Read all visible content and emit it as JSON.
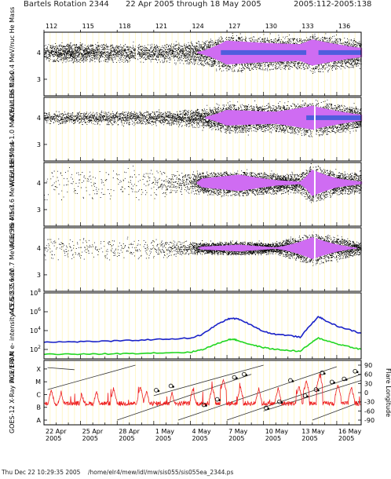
{
  "header": {
    "title": "Bartels Rotation 2344",
    "date_range": "22 Apr 2005 through 18 May 2005",
    "doy_range": "2005:112-2005:138"
  },
  "footer": {
    "timestamp": "Thu Dec 22 10:29:35 2005",
    "path": "/home/elr4/mew/idl/mw/sis055/sis055ea_2344.ps"
  },
  "colors": {
    "background": "#ffffff",
    "stripe": "#fff7c8",
    "scatter": "#000000",
    "dense_fill": "#cf6cf2",
    "dense_core": "#3a5bd9",
    "epam_high": "#1a22c8",
    "epam_low": "#22d622",
    "xray": "#ee2222",
    "flare_line": "#333333"
  },
  "chart_data": [
    {
      "type": "scatter",
      "ylabel": "ACE/ULEIS 0.2-0.4 MeV/nuc He Mass",
      "y_ticks": [
        "4",
        "3"
      ],
      "x_day_range": [
        22,
        48
      ],
      "mass_center": 4,
      "activity": [
        {
          "day": 22,
          "density": 0.25,
          "spread": 0.25
        },
        {
          "day": 24,
          "density": 0.55,
          "spread": 0.3
        },
        {
          "day": 27,
          "density": 0.35,
          "spread": 0.28
        },
        {
          "day": 30,
          "density": 0.3,
          "spread": 0.28
        },
        {
          "day": 33,
          "density": 0.35,
          "spread": 0.3
        },
        {
          "day": 35,
          "density": 0.6,
          "spread": 0.38
        },
        {
          "day": 37,
          "density": 1.0,
          "spread": 0.55
        },
        {
          "day": 40,
          "density": 0.95,
          "spread": 0.5
        },
        {
          "day": 43,
          "density": 0.9,
          "spread": 0.48
        },
        {
          "day": 44,
          "density": 1.0,
          "spread": 0.6
        },
        {
          "day": 46,
          "density": 0.9,
          "spread": 0.48
        },
        {
          "day": 48,
          "density": 0.75,
          "spread": 0.42
        }
      ],
      "core_spans": [
        [
          36.5,
          43.5
        ],
        [
          44.5,
          48
        ]
      ],
      "spike_days": [
        29.6
      ]
    },
    {
      "type": "scatter",
      "ylabel": "ACE/ULEIS 0.4-1.0 MeV/nuc He Mass",
      "y_ticks": [
        "4",
        "3"
      ],
      "x_day_range": [
        22,
        48
      ],
      "mass_center": 4,
      "activity": [
        {
          "day": 22,
          "density": 0.2,
          "spread": 0.2
        },
        {
          "day": 27,
          "density": 0.25,
          "spread": 0.2
        },
        {
          "day": 32,
          "density": 0.3,
          "spread": 0.22
        },
        {
          "day": 35,
          "density": 0.5,
          "spread": 0.3
        },
        {
          "day": 37,
          "density": 0.9,
          "spread": 0.45
        },
        {
          "day": 41,
          "density": 0.85,
          "spread": 0.4
        },
        {
          "day": 44,
          "density": 1.0,
          "spread": 0.55
        },
        {
          "day": 48,
          "density": 0.7,
          "spread": 0.35
        }
      ],
      "core_spans": [
        [
          43.5,
          48
        ]
      ],
      "spike_days": [
        44.2
      ]
    },
    {
      "type": "scatter",
      "ylabel": "ACE/SIS 4.5-7.6 MeV/nuc He Mass",
      "y_ticks": [
        "4",
        "3"
      ],
      "x_day_range": [
        22,
        48
      ],
      "mass_center": 4,
      "activity": [
        {
          "day": 22,
          "density": 0.03,
          "spread": 0.5
        },
        {
          "day": 30,
          "density": 0.04,
          "spread": 0.5
        },
        {
          "day": 34,
          "density": 0.2,
          "spread": 0.3
        },
        {
          "day": 35,
          "density": 0.8,
          "spread": 0.35
        },
        {
          "day": 38,
          "density": 1.0,
          "spread": 0.38
        },
        {
          "day": 41,
          "density": 0.7,
          "spread": 0.32
        },
        {
          "day": 43,
          "density": 0.6,
          "spread": 0.3
        },
        {
          "day": 44,
          "density": 1.0,
          "spread": 0.6
        },
        {
          "day": 46,
          "density": 0.8,
          "spread": 0.35
        },
        {
          "day": 48,
          "density": 0.6,
          "spread": 0.3
        }
      ],
      "core_spans": [],
      "spike_days": [
        44.2
      ]
    },
    {
      "type": "scatter",
      "ylabel": "ACE/SIS 7.6-10.7 MeV/nuc He Mass",
      "y_ticks": [
        "4",
        "3"
      ],
      "x_day_range": [
        22,
        48
      ],
      "mass_center": 4,
      "activity": [
        {
          "day": 22,
          "density": 0.06,
          "spread": 0.35
        },
        {
          "day": 30,
          "density": 0.05,
          "spread": 0.35
        },
        {
          "day": 34,
          "density": 0.2,
          "spread": 0.2
        },
        {
          "day": 35,
          "density": 0.7,
          "spread": 0.18
        },
        {
          "day": 38,
          "density": 0.9,
          "spread": 0.2
        },
        {
          "day": 41,
          "density": 0.6,
          "spread": 0.18
        },
        {
          "day": 44,
          "density": 1.0,
          "spread": 0.5
        },
        {
          "day": 48,
          "density": 0.5,
          "spread": 0.18
        }
      ],
      "core_spans": [],
      "spike_days": [
        44.2
      ]
    },
    {
      "type": "line",
      "ylabel": "ACE/EPAM e- intensity 45 & 235 keV",
      "y_log_range": [
        1,
        8
      ],
      "y_tick_exponents": [
        2,
        4,
        6,
        8
      ],
      "x_day_range": [
        22,
        48
      ],
      "series": [
        {
          "color": "#1a22c8",
          "x": [
            22,
            24,
            26,
            28,
            30,
            32,
            34,
            35,
            36,
            37,
            37.5,
            38,
            39,
            40,
            41,
            42,
            43,
            44,
            44.5,
            45,
            46,
            47,
            48
          ],
          "y": [
            2.8,
            2.8,
            2.85,
            2.9,
            3.0,
            3.1,
            3.2,
            3.6,
            4.5,
            5.2,
            5.3,
            5.2,
            4.6,
            3.9,
            3.6,
            3.5,
            3.3,
            4.8,
            5.5,
            5.1,
            4.5,
            4.1,
            3.7
          ]
        },
        {
          "color": "#22d622",
          "x": [
            22,
            24,
            26,
            28,
            30,
            32,
            34,
            35,
            36,
            37,
            37.5,
            38,
            39,
            40,
            41,
            42,
            43,
            44,
            44.5,
            45,
            46,
            47,
            48
          ],
          "y": [
            1.5,
            1.5,
            1.5,
            1.55,
            1.6,
            1.65,
            1.7,
            2.0,
            2.5,
            3.0,
            3.1,
            2.9,
            2.5,
            2.2,
            2.0,
            1.9,
            1.8,
            2.8,
            3.2,
            3.0,
            2.6,
            2.3,
            2.0
          ]
        }
      ]
    },
    {
      "type": "line",
      "ylabel": "GOES-12 X-Ray Flux 1-8 A",
      "y2label": "Flare Longitude",
      "y_class_ticks": [
        "X",
        "M",
        "C",
        "B",
        "A"
      ],
      "y2_ticks": [
        "90",
        "60",
        "30",
        "0",
        "-30",
        "-60",
        "-90"
      ],
      "x_day_range": [
        22,
        48
      ],
      "x_tick_days": [
        22,
        25,
        28,
        31,
        34,
        37,
        40,
        43,
        46
      ],
      "x_tick_labels": [
        [
          "22 Apr",
          "2005"
        ],
        [
          "25 Apr",
          "2005"
        ],
        [
          "28 Apr",
          "2005"
        ],
        [
          "1 May",
          "2005"
        ],
        [
          "4 May",
          "2005"
        ],
        [
          "7 May",
          "2005"
        ],
        [
          "10 May",
          "2005"
        ],
        [
          "13 May",
          "2005"
        ],
        [
          "16 May",
          "2005"
        ]
      ],
      "baseline_class": 2.3,
      "flare_peaks": [
        {
          "day": 22.6,
          "class": 3.4
        },
        {
          "day": 23.4,
          "class": 3.2
        },
        {
          "day": 25.1,
          "class": 3.1
        },
        {
          "day": 26.3,
          "class": 3.3
        },
        {
          "day": 27.7,
          "class": 3.5
        },
        {
          "day": 29.9,
          "class": 3.6
        },
        {
          "day": 30.4,
          "class": 3.3
        },
        {
          "day": 32.5,
          "class": 3.2
        },
        {
          "day": 34.2,
          "class": 3.4
        },
        {
          "day": 35.8,
          "class": 3.6
        },
        {
          "day": 36.7,
          "class": 4.2
        },
        {
          "day": 38.1,
          "class": 3.6
        },
        {
          "day": 39.6,
          "class": 3.5
        },
        {
          "day": 41.2,
          "class": 3.5
        },
        {
          "day": 42.9,
          "class": 3.7
        },
        {
          "day": 43.5,
          "class": 4.1
        },
        {
          "day": 44.6,
          "class": 4.6
        },
        {
          "day": 46.1,
          "class": 3.8
        },
        {
          "day": 47.2,
          "class": 3.6
        }
      ],
      "longitude_tracks": [
        {
          "start": 22.3,
          "end": 24.5,
          "lon_start": 82,
          "lon_end": 75
        },
        {
          "start": 22.3,
          "end": 29.5,
          "lon_start": 10,
          "lon_end": 90
        },
        {
          "start": 31,
          "end": 40,
          "lon_start": -10,
          "lon_end": 90
        },
        {
          "start": 28,
          "end": 39,
          "lon_start": -90,
          "lon_end": 60
        },
        {
          "start": 33,
          "end": 46,
          "lon_start": -90,
          "lon_end": 85
        },
        {
          "start": 37,
          "end": 48,
          "lon_start": -90,
          "lon_end": 60
        },
        {
          "start": 40,
          "end": 48,
          "lon_start": -60,
          "lon_end": 40
        },
        {
          "start": 44,
          "end": 48,
          "lon_start": -90,
          "lon_end": -30
        }
      ],
      "flare_markers": [
        {
          "day": 31.2,
          "lon": 8
        },
        {
          "day": 32.4,
          "lon": 22
        },
        {
          "day": 35.1,
          "lon": -40
        },
        {
          "day": 36.2,
          "lon": -22
        },
        {
          "day": 37.6,
          "lon": 50
        },
        {
          "day": 38.4,
          "lon": 60
        },
        {
          "day": 40.2,
          "lon": -50
        },
        {
          "day": 41.3,
          "lon": -30
        },
        {
          "day": 42.2,
          "lon": 40
        },
        {
          "day": 43.4,
          "lon": -10
        },
        {
          "day": 44.3,
          "lon": 10
        },
        {
          "day": 44.8,
          "lon": 65
        },
        {
          "day": 45.6,
          "lon": 35
        },
        {
          "day": 46.6,
          "lon": 45
        },
        {
          "day": 47.5,
          "lon": 70
        }
      ]
    }
  ],
  "top_axis": {
    "ticks": [
      "112",
      "115",
      "118",
      "121",
      "124",
      "127",
      "130",
      "133",
      "136"
    ],
    "tick_days": [
      22,
      25,
      28,
      31,
      34,
      37,
      40,
      43,
      46
    ]
  }
}
